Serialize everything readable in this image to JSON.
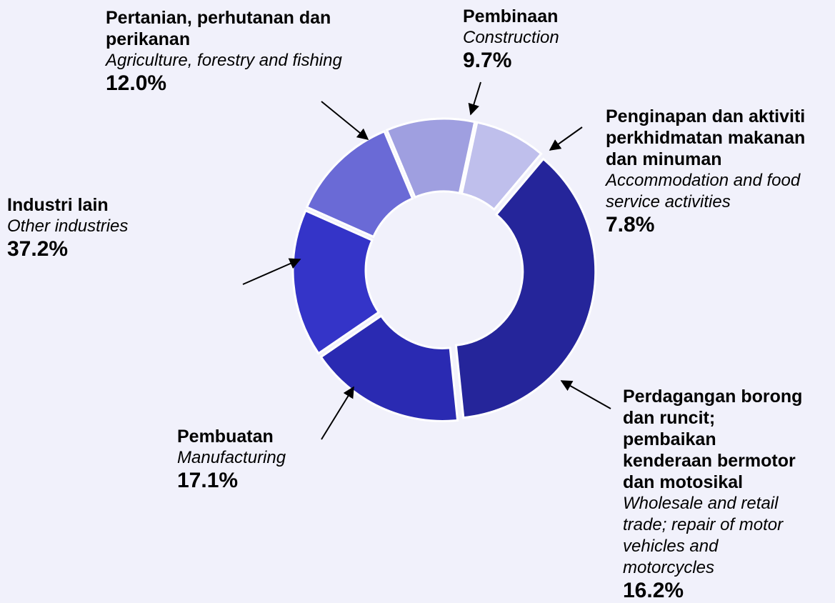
{
  "chart_data": {
    "type": "donut",
    "categories": [
      "Pertanian, perhutanan dan perikanan",
      "Pembinaan",
      "Penginapan dan aktiviti perkhidmatan makanan dan minuman",
      "Industri lain",
      "Pembuatan",
      "Perdagangan borong dan runcit;  pembaikan kenderaan  bermotor dan motosikal"
    ],
    "categories_en": [
      "Agriculture, forestry and fishing",
      "Construction",
      "Accommodation and food service activities",
      "Other industries",
      "Manufacturing",
      "Wholesale and retail trade; repair of motor vehicles and motorcycles"
    ],
    "values": [
      12.0,
      9.7,
      7.8,
      37.2,
      17.1,
      16.2
    ],
    "value_labels": [
      "12.0%",
      "9.7%",
      "7.8%",
      "37.2%",
      "17.1%",
      "16.2%"
    ],
    "colors": [
      "#6a6ad6",
      "#9f9fe0",
      "#bfbfec",
      "#25259a",
      "#2a2ab2",
      "#3434c8"
    ]
  }
}
